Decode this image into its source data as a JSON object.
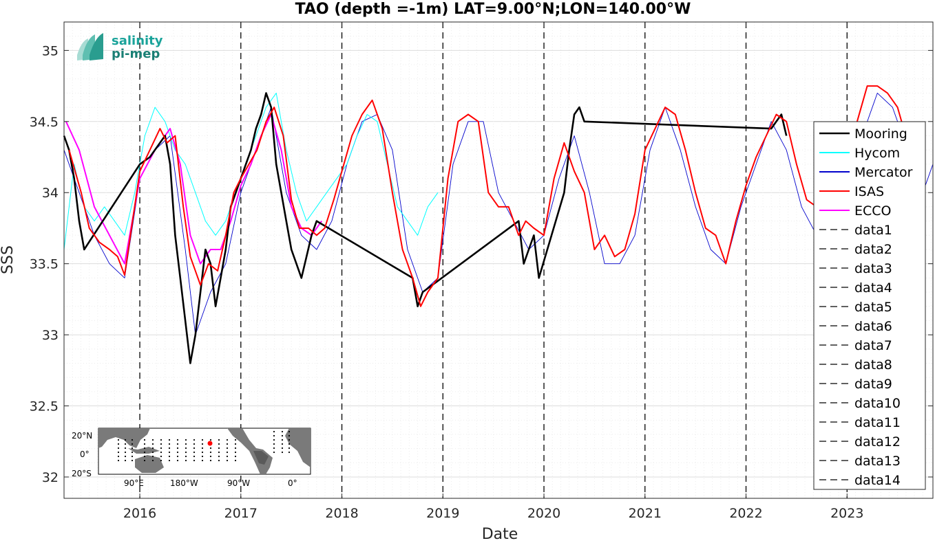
{
  "logo": {
    "line1": "salinity",
    "line2": "pi-mep",
    "color1": "#1aa39a",
    "color2": "#1a7f74"
  },
  "inset_map": {
    "lat_labels": [
      "20°N",
      "0°",
      "20°S"
    ],
    "lon_labels": [
      "90°E",
      "180°W",
      "90°W",
      "0°"
    ],
    "marker_color": "#ff0000"
  },
  "chart_data": {
    "type": "line",
    "title": "TAO (depth =-1m) LAT=9.00°N;LON=140.00°W",
    "xlabel": "Date",
    "ylabel": "SSS",
    "xlim": [
      2015.25,
      2023.85
    ],
    "ylim": [
      31.85,
      35.2
    ],
    "yticks": [
      32,
      32.5,
      33,
      33.5,
      34,
      34.5,
      35
    ],
    "ytick_labels": [
      "32",
      "32.5",
      "33",
      "33.5",
      "34",
      "34.5",
      "35"
    ],
    "xticks": [
      2016,
      2017,
      2018,
      2019,
      2020,
      2021,
      2022,
      2023
    ],
    "xtick_labels": [
      "2016",
      "2017",
      "2018",
      "2019",
      "2020",
      "2021",
      "2022",
      "2023"
    ],
    "grid": true,
    "legend_position": "right",
    "vlines": [
      2016,
      2017,
      2018,
      2019,
      2020,
      2021,
      2022,
      2023
    ],
    "series": [
      {
        "name": "Mooring",
        "color": "#000000",
        "style": "solid",
        "x": [
          2015.25,
          2015.3,
          2015.35,
          2015.4,
          2015.45,
          2016.0,
          2016.1,
          2016.2,
          2016.25,
          2016.3,
          2016.35,
          2016.4,
          2016.45,
          2016.5,
          2016.55,
          2016.6,
          2016.65,
          2016.7,
          2016.75,
          2016.8,
          2016.85,
          2016.9,
          2016.95,
          2017.0,
          2017.05,
          2017.1,
          2017.15,
          2017.2,
          2017.25,
          2017.3,
          2017.35,
          2017.4,
          2017.45,
          2017.5,
          2017.55,
          2017.6,
          2017.65,
          2017.7,
          2017.75,
          2018.7,
          2018.75,
          2018.8,
          2019.75,
          2019.8,
          2019.85,
          2019.9,
          2019.95,
          2020.2,
          2020.25,
          2020.3,
          2020.35,
          2020.4,
          2022.25,
          2022.3,
          2022.35,
          2022.4
        ],
        "y": [
          34.4,
          34.3,
          34.1,
          33.8,
          33.6,
          34.2,
          34.25,
          34.35,
          34.4,
          34.2,
          33.7,
          33.4,
          33.1,
          32.8,
          33.0,
          33.3,
          33.6,
          33.5,
          33.2,
          33.4,
          33.6,
          33.9,
          34.0,
          34.1,
          34.2,
          34.3,
          34.45,
          34.55,
          34.7,
          34.6,
          34.2,
          34.0,
          33.8,
          33.6,
          33.5,
          33.4,
          33.55,
          33.7,
          33.8,
          33.4,
          33.2,
          33.3,
          33.8,
          33.5,
          33.6,
          33.7,
          33.4,
          34.0,
          34.3,
          34.55,
          34.6,
          34.5,
          34.45,
          34.5,
          34.55,
          34.4
        ]
      },
      {
        "name": "Hycom",
        "color": "#00ffff",
        "style": "solid",
        "x": [
          2015.25,
          2015.35,
          2015.45,
          2015.55,
          2015.65,
          2015.75,
          2015.85,
          2015.95,
          2016.05,
          2016.15,
          2016.25,
          2016.35,
          2016.45,
          2016.55,
          2016.65,
          2016.75,
          2016.85,
          2016.95,
          2017.05,
          2017.15,
          2017.25,
          2017.35,
          2017.45,
          2017.55,
          2017.65,
          2017.75,
          2017.85,
          2017.95,
          2018.05,
          2018.15,
          2018.25,
          2018.35,
          2018.45,
          2018.55,
          2018.65,
          2018.75,
          2018.85,
          2018.95
        ],
        "y": [
          33.6,
          34.2,
          33.9,
          33.8,
          33.9,
          33.8,
          33.7,
          34.0,
          34.4,
          34.6,
          34.5,
          34.3,
          34.2,
          34.0,
          33.8,
          33.7,
          33.8,
          34.0,
          34.2,
          34.4,
          34.6,
          34.7,
          34.3,
          34.0,
          33.8,
          33.9,
          34.0,
          34.1,
          34.2,
          34.4,
          34.55,
          34.5,
          34.2,
          33.9,
          33.8,
          33.7,
          33.9,
          34.0
        ]
      },
      {
        "name": "Mercator",
        "color": "#0000cc",
        "style": "solid",
        "x": [
          2015.25,
          2015.4,
          2015.55,
          2015.7,
          2015.85,
          2016.0,
          2016.15,
          2016.3,
          2016.45,
          2016.55,
          2016.7,
          2016.85,
          2017.0,
          2017.15,
          2017.3,
          2017.45,
          2017.6,
          2017.75,
          2017.9,
          2018.05,
          2018.2,
          2018.35,
          2018.5,
          2018.65,
          2018.8,
          2018.95,
          2019.1,
          2019.25,
          2019.4,
          2019.55,
          2019.7,
          2019.85,
          2020.0,
          2020.15,
          2020.3,
          2020.45,
          2020.6,
          2020.75,
          2020.9,
          2021.05,
          2021.2,
          2021.35,
          2021.5,
          2021.65,
          2021.8,
          2021.95,
          2022.1,
          2022.25,
          2022.4,
          2022.55,
          2022.7,
          2022.85,
          2023.0,
          2023.15,
          2023.3,
          2023.45,
          2023.6,
          2023.75,
          2023.85
        ],
        "y": [
          34.3,
          34.0,
          33.7,
          33.5,
          33.4,
          34.1,
          34.3,
          34.4,
          33.6,
          33.0,
          33.3,
          33.5,
          34.0,
          34.3,
          34.6,
          34.0,
          33.7,
          33.6,
          33.8,
          34.2,
          34.5,
          34.55,
          34.3,
          33.6,
          33.3,
          33.4,
          34.2,
          34.5,
          34.5,
          34.0,
          33.8,
          33.6,
          33.7,
          34.1,
          34.4,
          34.0,
          33.5,
          33.5,
          33.7,
          34.3,
          34.6,
          34.3,
          33.9,
          33.6,
          33.5,
          33.9,
          34.2,
          34.5,
          34.3,
          33.9,
          33.7,
          33.9,
          34.1,
          34.4,
          34.7,
          34.6,
          34.3,
          34.0,
          34.2
        ]
      },
      {
        "name": "ISAS",
        "color": "#ff0000",
        "style": "solid",
        "x": [
          2015.3,
          2015.42,
          2015.5,
          2015.6,
          2015.7,
          2015.78,
          2015.85,
          2016.0,
          2016.1,
          2016.2,
          2016.27,
          2016.35,
          2016.43,
          2016.5,
          2016.6,
          2016.68,
          2016.77,
          2016.85,
          2016.93,
          2017.0,
          2017.08,
          2017.16,
          2017.25,
          2017.33,
          2017.42,
          2017.5,
          2017.58,
          2017.67,
          2017.75,
          2017.83,
          2017.92,
          2018.0,
          2018.1,
          2018.2,
          2018.3,
          2018.4,
          2018.5,
          2018.6,
          2018.7,
          2018.78,
          2018.85,
          2018.95,
          2019.05,
          2019.15,
          2019.25,
          2019.35,
          2019.45,
          2019.55,
          2019.65,
          2019.75,
          2019.82,
          2019.9,
          2020.0,
          2020.1,
          2020.2,
          2020.3,
          2020.4,
          2020.5,
          2020.6,
          2020.7,
          2020.8,
          2020.9,
          2021.0,
          2021.1,
          2021.2,
          2021.3,
          2021.4,
          2021.5,
          2021.6,
          2021.7,
          2021.8,
          2021.9,
          2022.0,
          2022.1,
          2022.2,
          2022.3,
          2022.4,
          2022.5,
          2022.6,
          2022.7,
          2022.8,
          2022.9,
          2023.0,
          2023.1,
          2023.2,
          2023.3,
          2023.4,
          2023.5,
          2023.6,
          2023.7
        ],
        "y": [
          34.3,
          34.0,
          33.75,
          33.65,
          33.6,
          33.55,
          33.42,
          34.15,
          34.3,
          34.45,
          34.35,
          34.4,
          33.9,
          33.55,
          33.35,
          33.5,
          33.45,
          33.7,
          34.0,
          34.1,
          34.2,
          34.3,
          34.5,
          34.6,
          34.4,
          33.95,
          33.75,
          33.75,
          33.7,
          33.75,
          33.95,
          34.15,
          34.4,
          34.55,
          34.65,
          34.45,
          34.0,
          33.6,
          33.4,
          33.2,
          33.3,
          33.4,
          34.1,
          34.5,
          34.55,
          34.5,
          34.0,
          33.9,
          33.9,
          33.7,
          33.8,
          33.75,
          33.7,
          34.1,
          34.35,
          34.15,
          34.0,
          33.6,
          33.7,
          33.55,
          33.6,
          33.85,
          34.3,
          34.45,
          34.6,
          34.55,
          34.3,
          34.0,
          33.75,
          33.7,
          33.5,
          33.8,
          34.05,
          34.25,
          34.4,
          34.55,
          34.5,
          34.2,
          33.95,
          33.9,
          33.85,
          34.0,
          34.2,
          34.5,
          34.75,
          34.75,
          34.7,
          34.6,
          34.35,
          34.2
        ]
      },
      {
        "name": "ECCO",
        "color": "#ff00ff",
        "style": "solid",
        "x": [
          2015.27,
          2015.4,
          2015.55,
          2015.7,
          2015.85,
          2016.0,
          2016.15,
          2016.3,
          2016.4,
          2016.5,
          2016.6,
          2016.7,
          2016.8,
          2016.9,
          2017.0,
          2017.1,
          2017.2,
          2017.3,
          2017.4,
          2017.5,
          2017.6,
          2017.7,
          2017.8
        ],
        "y": [
          34.5,
          34.3,
          33.9,
          33.7,
          33.5,
          34.1,
          34.3,
          34.45,
          34.2,
          33.7,
          33.5,
          33.6,
          33.6,
          33.8,
          34.05,
          34.2,
          34.4,
          34.55,
          34.3,
          33.9,
          33.75,
          33.7,
          33.8
        ]
      },
      {
        "name": "data1",
        "color": "#000000",
        "style": "dashed",
        "x": [
          2016,
          2016
        ],
        "y": [
          31.85,
          35.2
        ]
      },
      {
        "name": "data2",
        "color": "#000000",
        "style": "dashed",
        "x": [
          2017,
          2017
        ],
        "y": [
          31.85,
          35.2
        ]
      },
      {
        "name": "data3",
        "color": "#000000",
        "style": "dashed",
        "x": [
          2018,
          2018
        ],
        "y": [
          31.85,
          35.2
        ]
      },
      {
        "name": "data4",
        "color": "#000000",
        "style": "dashed",
        "x": [
          2019,
          2019
        ],
        "y": [
          31.85,
          35.2
        ]
      },
      {
        "name": "data5",
        "color": "#000000",
        "style": "dashed",
        "x": [
          2020,
          2020
        ],
        "y": [
          31.85,
          35.2
        ]
      },
      {
        "name": "data6",
        "color": "#000000",
        "style": "dashed",
        "x": [
          2021,
          2021
        ],
        "y": [
          31.85,
          35.2
        ]
      },
      {
        "name": "data7",
        "color": "#000000",
        "style": "dashed",
        "x": [
          2022,
          2022
        ],
        "y": [
          31.85,
          35.2
        ]
      },
      {
        "name": "data8",
        "color": "#000000",
        "style": "dashed",
        "x": [
          2023,
          2023
        ],
        "y": [
          31.85,
          35.2
        ]
      },
      {
        "name": "data9",
        "color": "#000000",
        "style": "dashed",
        "x": [],
        "y": []
      },
      {
        "name": "data10",
        "color": "#000000",
        "style": "dashed",
        "x": [],
        "y": []
      },
      {
        "name": "data11",
        "color": "#000000",
        "style": "dashed",
        "x": [],
        "y": []
      },
      {
        "name": "data12",
        "color": "#000000",
        "style": "dashed",
        "x": [],
        "y": []
      },
      {
        "name": "data13",
        "color": "#000000",
        "style": "dashed",
        "x": [],
        "y": []
      },
      {
        "name": "data14",
        "color": "#000000",
        "style": "dashed",
        "x": [],
        "y": []
      }
    ]
  }
}
